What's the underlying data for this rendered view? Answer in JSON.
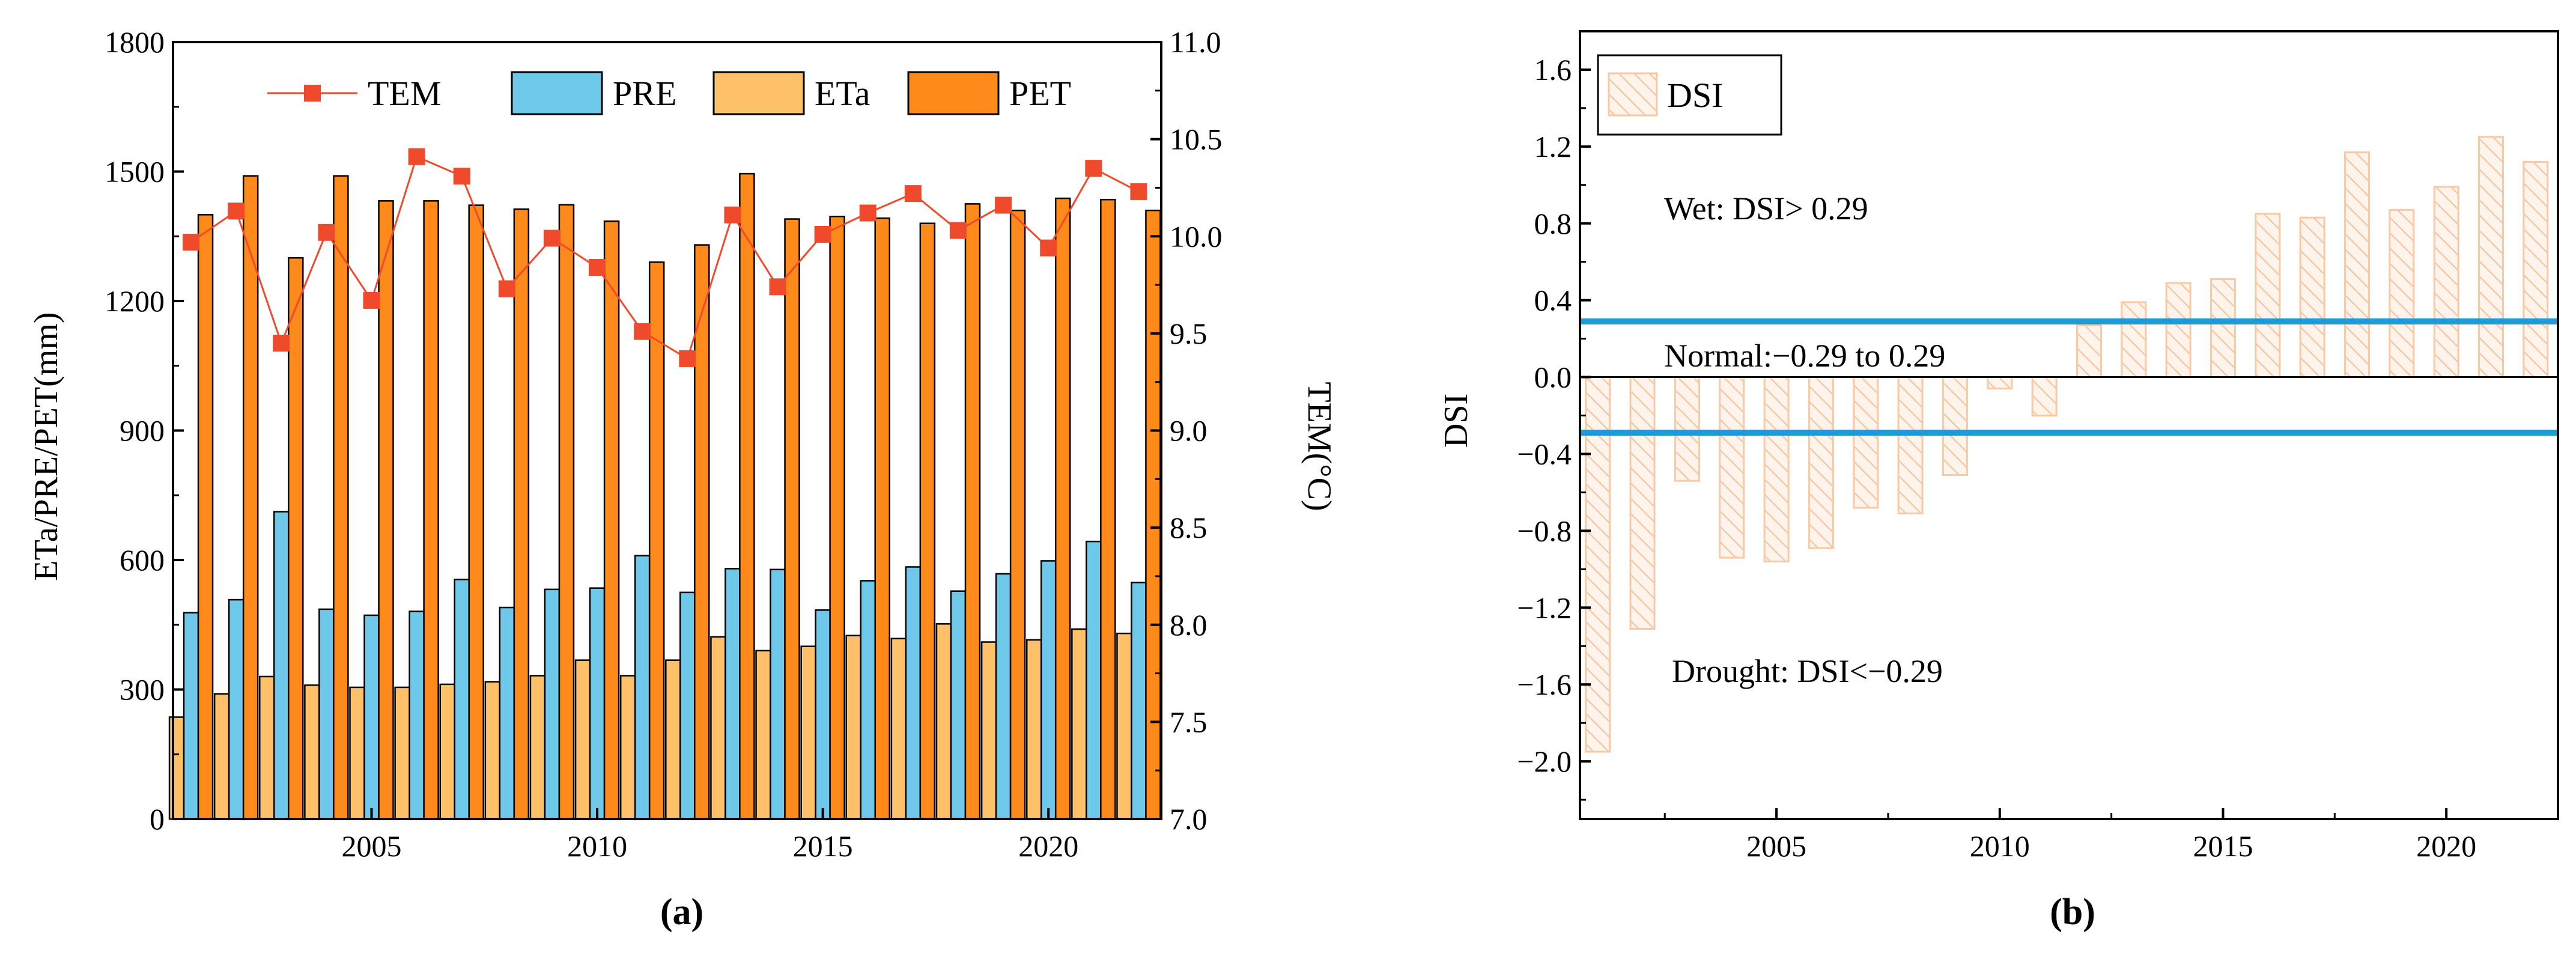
{
  "chart_data": [
    {
      "type": "bar",
      "panel_label": "(a)",
      "x": [
        2001,
        2002,
        2003,
        2004,
        2005,
        2006,
        2007,
        2008,
        2009,
        2010,
        2011,
        2012,
        2013,
        2014,
        2015,
        2016,
        2017,
        2018,
        2019,
        2020,
        2021,
        2022
      ],
      "xticks": [
        2005,
        2010,
        2015,
        2020
      ],
      "xlim": [
        2000.6,
        2022.5
      ],
      "ylabel": "ETa/PRE/PET(mm)",
      "ylim": [
        0,
        1800
      ],
      "yticks": [
        0,
        300,
        600,
        900,
        1200,
        1500,
        1800
      ],
      "y2label": "TEM(°C)",
      "y2lim": [
        7.0,
        11.0
      ],
      "y2ticks": [
        "7.0",
        "7.5",
        "8.0",
        "8.5",
        "9.0",
        "9.5",
        "10.0",
        "10.5",
        "11.0"
      ],
      "legend_position": "top",
      "series": [
        {
          "name": "TEM",
          "kind": "line",
          "axis": "right",
          "color": "#f04a2c",
          "values": [
            9.97,
            10.13,
            9.45,
            10.02,
            9.67,
            10.41,
            10.31,
            9.73,
            9.99,
            9.84,
            9.51,
            9.37,
            10.11,
            9.74,
            10.01,
            10.12,
            10.22,
            10.03,
            10.16,
            9.94,
            10.35,
            10.23
          ]
        },
        {
          "name": "PRE",
          "kind": "bar",
          "axis": "left",
          "color": "#6ec8ea",
          "values": [
            478,
            508,
            712,
            486,
            472,
            481,
            555,
            490,
            532,
            535,
            610,
            525,
            580,
            578,
            484,
            552,
            584,
            528,
            568,
            598,
            643,
            548
          ]
        },
        {
          "name": "ETa",
          "kind": "bar",
          "axis": "left",
          "color": "#ffc06a",
          "values": [
            236,
            290,
            330,
            310,
            305,
            305,
            312,
            318,
            332,
            368,
            332,
            368,
            422,
            390,
            400,
            425,
            418,
            452,
            410,
            415,
            440,
            430
          ]
        },
        {
          "name": "PET",
          "kind": "bar",
          "axis": "left",
          "color": "#ff8a1c",
          "values": [
            1400,
            1490,
            1300,
            1490,
            1432,
            1432,
            1422,
            1413,
            1423,
            1385,
            1290,
            1330,
            1495,
            1390,
            1396,
            1392,
            1380,
            1425,
            1410,
            1438,
            1435,
            1410
          ]
        }
      ]
    },
    {
      "type": "bar",
      "panel_label": "(b)",
      "x": [
        2001,
        2002,
        2003,
        2004,
        2005,
        2006,
        2007,
        2008,
        2009,
        2010,
        2011,
        2012,
        2013,
        2014,
        2015,
        2016,
        2017,
        2018,
        2019,
        2020,
        2021,
        2022
      ],
      "xticks": [
        2005,
        2010,
        2015,
        2020
      ],
      "xlim": [
        2000.6,
        2022.5
      ],
      "ylabel": "DSI",
      "ylim": [
        -2.3,
        1.8
      ],
      "yticks": [
        "-2.0",
        "-1.6",
        "-1.2",
        "-0.8",
        "-0.4",
        "0.0",
        "0.4",
        "0.8",
        "1.2",
        "1.6"
      ],
      "legend_position": "top-left",
      "series": [
        {
          "name": "DSI",
          "color": "#f9c9a4",
          "values": [
            -1.95,
            -1.31,
            -0.54,
            -0.94,
            -0.96,
            -0.89,
            -0.68,
            -0.71,
            -0.51,
            -0.06,
            -0.2,
            0.27,
            0.39,
            0.49,
            0.51,
            0.85,
            0.83,
            1.17,
            0.87,
            0.99,
            1.25,
            1.12
          ]
        }
      ],
      "thresholds": [
        0.29,
        -0.29
      ],
      "threshold_color": "#1e9ad6",
      "annotations": {
        "wet": "Wet: DSI> 0.29",
        "normal": "Normal:−0.29 to 0.29",
        "drought": "Drought: DSI<−0.29"
      }
    }
  ]
}
